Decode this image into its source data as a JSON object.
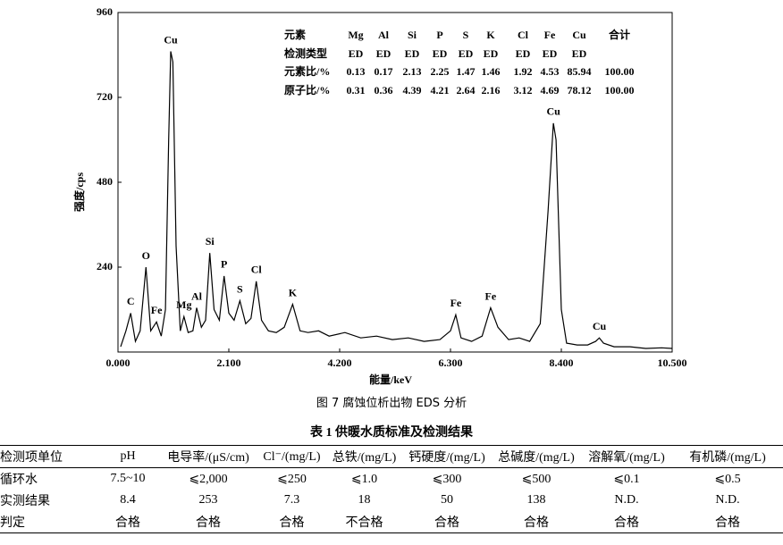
{
  "chart_data": {
    "type": "line",
    "x": [
      0.05,
      0.15,
      0.24,
      0.33,
      0.42,
      0.53,
      0.62,
      0.73,
      0.82,
      0.9,
      0.96,
      1.0,
      1.04,
      1.1,
      1.18,
      1.25,
      1.33,
      1.42,
      1.49,
      1.58,
      1.66,
      1.74,
      1.82,
      1.92,
      2.01,
      2.1,
      2.2,
      2.31,
      2.42,
      2.52,
      2.62,
      2.72,
      2.85,
      3.0,
      3.15,
      3.31,
      3.45,
      3.6,
      3.8,
      4.0,
      4.3,
      4.6,
      4.9,
      5.2,
      5.5,
      5.8,
      6.1,
      6.3,
      6.4,
      6.5,
      6.7,
      6.9,
      7.06,
      7.2,
      7.4,
      7.6,
      7.8,
      8.0,
      8.15,
      8.25,
      8.3,
      8.4,
      8.5,
      8.7,
      8.9,
      9.05,
      9.12,
      9.2,
      9.4,
      9.7,
      10.0,
      10.3,
      10.5
    ],
    "values": [
      15,
      60,
      110,
      30,
      60,
      240,
      60,
      85,
      45,
      120,
      600,
      850,
      820,
      300,
      60,
      100,
      55,
      60,
      125,
      70,
      90,
      280,
      120,
      90,
      215,
      110,
      90,
      145,
      80,
      95,
      200,
      90,
      60,
      55,
      70,
      135,
      60,
      55,
      60,
      45,
      55,
      40,
      45,
      35,
      40,
      30,
      35,
      60,
      105,
      40,
      30,
      45,
      125,
      70,
      35,
      40,
      30,
      80,
      400,
      647,
      600,
      120,
      25,
      20,
      20,
      30,
      40,
      25,
      15,
      15,
      10,
      12,
      10
    ],
    "color": "#000000",
    "xlim": [
      0,
      10.5
    ],
    "xticks": [
      {
        "value": 0,
        "label": "0.000"
      },
      {
        "value": 2.1,
        "label": "2.100"
      },
      {
        "value": 4.2,
        "label": "4.200"
      },
      {
        "value": 6.3,
        "label": "6.300"
      },
      {
        "value": 8.4,
        "label": "8.400"
      },
      {
        "value": 10.5,
        "label": "10.500"
      }
    ],
    "ylim": [
      0,
      960
    ],
    "yticks": [
      240,
      480,
      720,
      960
    ],
    "x_label": "能量/keV",
    "y_label": "强度/cps",
    "annotations": [
      {
        "text": "C",
        "x": 0.24,
        "y": 110
      },
      {
        "text": "O",
        "x": 0.53,
        "y": 240
      },
      {
        "text": "Fe",
        "x": 0.73,
        "y": 85
      },
      {
        "text": "Cu",
        "x": 1.0,
        "y": 850
      },
      {
        "text": "Mg",
        "x": 1.25,
        "y": 100
      },
      {
        "text": "Al",
        "x": 1.49,
        "y": 125
      },
      {
        "text": "Si",
        "x": 1.74,
        "y": 280
      },
      {
        "text": "P",
        "x": 2.01,
        "y": 215
      },
      {
        "text": "S",
        "x": 2.31,
        "y": 145
      },
      {
        "text": "Cl",
        "x": 2.62,
        "y": 200
      },
      {
        "text": "K",
        "x": 3.31,
        "y": 135
      },
      {
        "text": "Fe",
        "x": 6.4,
        "y": 105
      },
      {
        "text": "Fe",
        "x": 7.06,
        "y": 125
      },
      {
        "text": "Cu",
        "x": 8.25,
        "y": 647
      },
      {
        "text": "Cu",
        "x": 9.12,
        "y": 40
      }
    ],
    "table": {
      "rows": [
        [
          "元素",
          "Mg",
          "Al",
          "Si",
          "P",
          "S",
          "K",
          "Cl",
          "Fe",
          "Cu",
          "合计"
        ],
        [
          "检测类型",
          "ED",
          "ED",
          "ED",
          "ED",
          "ED",
          "ED",
          "ED",
          "ED",
          "ED"
        ],
        [
          "元素比/%",
          "0.13",
          "0.17",
          "2.13",
          "2.25",
          "1.47",
          "1.46",
          "1.92",
          "4.53",
          "85.94",
          "100.00"
        ],
        [
          "原子比/%",
          "0.31",
          "0.36",
          "4.39",
          "4.21",
          "2.64",
          "2.16",
          "3.12",
          "4.69",
          "78.12",
          "100.00"
        ]
      ]
    }
  },
  "figure_caption": "图 7  腐蚀位析出物 EDS 分析",
  "table_caption": "表 1  供暖水质标准及检测结果",
  "table": {
    "header": [
      "检测项单位",
      "pH",
      "电导率/(μS/cm)",
      "Cl⁻/(mg/L)",
      "总铁/(mg/L)",
      "钙硬度/(mg/L)",
      "总碱度/(mg/L)",
      "溶解氧/(mg/L)",
      "有机磷/(mg/L)"
    ],
    "rows": [
      [
        "循环水",
        "7.5~10",
        "⩽2,000",
        "⩽250",
        "⩽1.0",
        "⩽300",
        "⩽500",
        "⩽0.1",
        "⩽0.5"
      ],
      [
        "实测结果",
        "8.4",
        "253",
        "7.3",
        "18",
        "50",
        "138",
        "N.D.",
        "N.D."
      ],
      [
        "判定",
        "合格",
        "合格",
        "合格",
        "不合格",
        "合格",
        "合格",
        "合格",
        "合格"
      ]
    ]
  }
}
